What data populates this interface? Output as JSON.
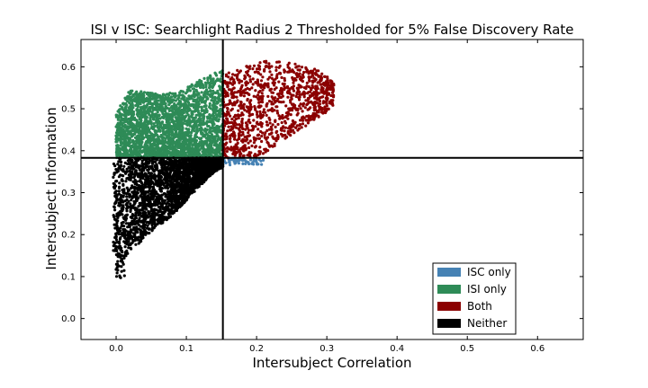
{
  "chart_data": {
    "type": "scatter",
    "title": "ISI v ISC: Searchlight Radius 2 Thresholded for 5% False Discovery Rate",
    "xlabel": "Intersubject Correlation",
    "ylabel": "Intersubject Information",
    "xlim": [
      -0.05,
      0.665
    ],
    "ylim": [
      -0.05,
      0.665
    ],
    "xticks": [
      "0.0",
      "0.1",
      "0.2",
      "0.3",
      "0.4",
      "0.5",
      "0.6"
    ],
    "yticks": [
      "0.0",
      "0.1",
      "0.2",
      "0.3",
      "0.4",
      "0.5",
      "0.6"
    ],
    "thresholds": {
      "isc": 0.152,
      "isi": 0.383
    },
    "grid": false,
    "legend_position": "lower-right",
    "series": [
      {
        "name": "ISC only",
        "color": "#4682b4",
        "region": "isc_only",
        "envelope_y": [
          0.366,
          0.383
        ],
        "envelope_x": [
          0.152,
          0.21
        ]
      },
      {
        "name": "ISI only",
        "color": "#2e8b57",
        "region": "isi_only",
        "envelope_x": [
          0.0,
          0.152
        ],
        "envelope_top": [
          [
            0.0,
            0.49
          ],
          [
            0.01,
            0.52
          ],
          [
            0.02,
            0.545
          ],
          [
            0.04,
            0.54
          ],
          [
            0.06,
            0.535
          ],
          [
            0.09,
            0.54
          ],
          [
            0.12,
            0.57
          ],
          [
            0.15,
            0.592
          ]
        ]
      },
      {
        "name": "Both",
        "color": "#8b0000",
        "region": "both",
        "envelope_x": [
          0.152,
          0.31
        ],
        "envelope_top": [
          [
            0.152,
            0.58
          ],
          [
            0.18,
            0.6
          ],
          [
            0.21,
            0.615
          ],
          [
            0.25,
            0.61
          ],
          [
            0.285,
            0.595
          ],
          [
            0.31,
            0.565
          ]
        ]
      },
      {
        "name": "Neither",
        "color": "#000000",
        "region": "neither",
        "envelope_x": [
          -0.005,
          0.152
        ],
        "envelope_bottom": [
          [
            -0.003,
            0.32
          ],
          [
            0.0,
            0.16
          ],
          [
            0.0,
            0.095
          ],
          [
            0.005,
            0.125
          ],
          [
            0.02,
            0.16
          ],
          [
            0.05,
            0.205
          ],
          [
            0.08,
            0.245
          ],
          [
            0.11,
            0.3
          ],
          [
            0.14,
            0.35
          ],
          [
            0.152,
            0.36
          ]
        ]
      }
    ]
  }
}
